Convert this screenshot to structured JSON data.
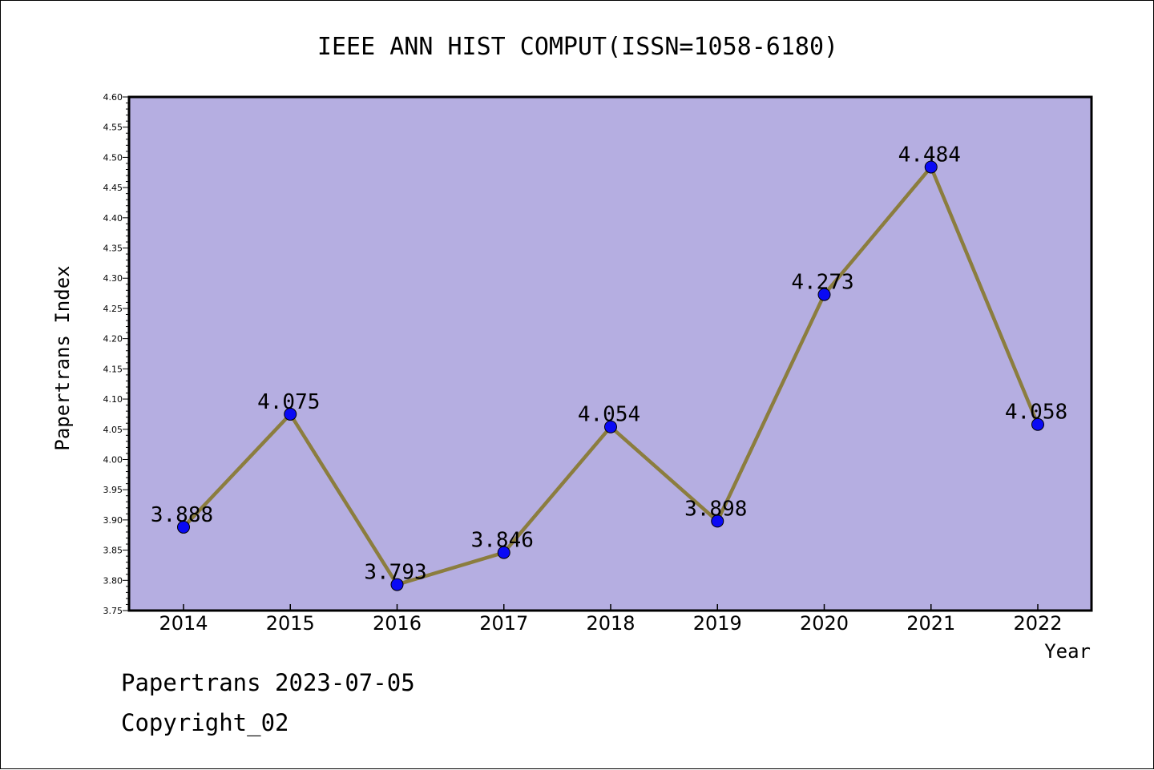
{
  "page": {
    "footer_line1": "Papertrans 2023-07-05",
    "footer_line2": "Copyright_02"
  },
  "colors": {
    "plot_background": "#b5aee1",
    "line": "#8b7d3e",
    "marker": "#0a0af5",
    "axis": "#000000"
  },
  "chart_data": {
    "type": "line",
    "title": "IEEE ANN HIST COMPUT(ISSN=1058-6180)",
    "xlabel": "Year",
    "ylabel": "Papertrans Index",
    "categories": [
      "2014",
      "2015",
      "2016",
      "2017",
      "2018",
      "2019",
      "2020",
      "2021",
      "2022"
    ],
    "series": [
      {
        "values": [
          3.888,
          4.075,
          3.793,
          3.846,
          4.054,
          3.898,
          4.273,
          4.484,
          4.058
        ],
        "labels": [
          "3.888",
          "4.075",
          "3.793",
          "3.846",
          "4.054",
          "3.898",
          "4.273",
          "4.484",
          "4.058"
        ]
      }
    ],
    "ylim": [
      3.75,
      4.6
    ],
    "yticks": [
      "3.75",
      "3.80",
      "3.85",
      "3.90",
      "3.95",
      "4.00",
      "4.05",
      "4.10",
      "4.15",
      "4.20",
      "4.25",
      "4.30",
      "4.35",
      "4.40",
      "4.45",
      "4.50",
      "4.55",
      "4.60"
    ],
    "grid": false,
    "legend": "none"
  }
}
